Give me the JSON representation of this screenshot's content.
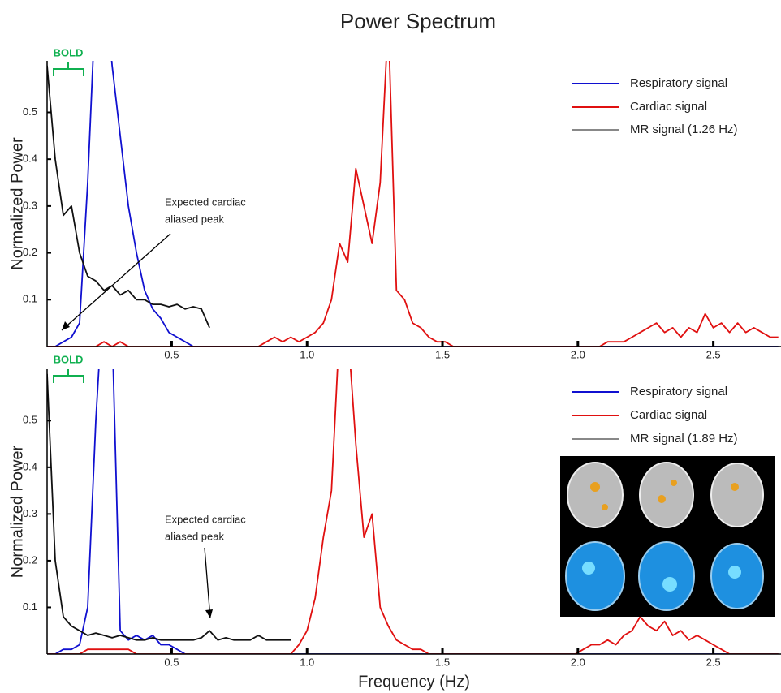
{
  "chart_data": [
    {
      "type": "line",
      "title": "Power Spectrum",
      "ylabel": "Normalized Power",
      "xlim": [
        0.04,
        2.75
      ],
      "ylim": [
        0,
        0.61
      ],
      "xticks": [
        0.5,
        {
          "value": 1,
          "label": "1.0"
        },
        1.5,
        {
          "value": 2,
          "label": "2.0"
        },
        2.5
      ],
      "yticks": [
        0.1,
        0.2,
        0.3,
        0.4,
        0.5
      ],
      "legend": "upper right",
      "annotations": [
        {
          "text": "BOLD"
        },
        {
          "lines": [
            "Expected cardiac",
            "aliased peak"
          ]
        }
      ],
      "x": [
        0.04,
        0.07,
        0.1,
        0.13,
        0.16,
        0.19,
        0.22,
        0.25,
        0.28,
        0.31,
        0.34,
        0.37,
        0.4,
        0.43,
        0.46,
        0.49,
        0.52,
        0.55,
        0.58,
        0.61,
        0.64,
        0.67,
        0.7,
        0.73,
        0.76,
        0.79,
        0.82,
        0.85,
        0.88,
        0.91,
        0.94,
        0.97,
        1,
        1.03,
        1.06,
        1.09,
        1.12,
        1.15,
        1.18,
        1.21,
        1.24,
        1.27,
        1.3,
        1.33,
        1.36,
        1.39,
        1.42,
        1.45,
        1.48,
        1.51,
        1.54,
        1.57,
        1.6,
        1.63,
        1.66,
        1.69,
        1.72,
        1.75,
        1.78,
        1.81,
        1.84,
        1.87,
        1.9,
        1.93,
        1.96,
        1.99,
        2.02,
        2.05,
        2.08,
        2.11,
        2.14,
        2.17,
        2.2,
        2.23,
        2.26,
        2.29,
        2.32,
        2.35,
        2.38,
        2.41,
        2.44,
        2.47,
        2.5,
        2.53,
        2.56,
        2.59,
        2.62,
        2.65,
        2.68,
        2.71,
        2.74
      ],
      "series": [
        {
          "name": "Respiratory signal",
          "color": "#1010d0",
          "values": [
            0,
            0,
            0.01,
            0.02,
            0.05,
            0.35,
            0.75,
            0.8,
            0.6,
            0.45,
            0.3,
            0.2,
            0.12,
            0.08,
            0.06,
            0.03,
            0.02,
            0.01,
            0,
            0,
            0,
            0,
            0,
            0,
            0,
            0,
            0,
            0,
            0,
            0,
            0,
            0,
            0,
            0,
            0,
            0,
            0,
            0,
            0,
            0,
            0,
            0,
            0,
            0,
            0,
            0,
            0,
            0,
            0,
            0,
            0,
            0,
            0,
            0,
            0,
            0,
            0,
            0,
            0,
            0,
            0,
            0,
            0,
            0,
            0,
            0,
            0,
            0,
            0,
            0,
            0,
            0,
            0,
            0,
            0,
            0,
            0,
            0,
            0,
            0,
            0,
            0,
            0,
            0,
            0,
            0,
            0,
            0,
            0,
            0,
            0
          ]
        },
        {
          "name": "Cardiac signal",
          "color": "#e01010",
          "values": [
            0,
            0,
            0,
            0,
            0,
            0,
            0,
            0.01,
            0,
            0.01,
            0,
            0,
            0,
            0,
            0,
            0,
            0,
            0,
            0,
            0,
            0,
            0,
            0,
            0,
            0,
            0,
            0,
            0.01,
            0.02,
            0.01,
            0.02,
            0.01,
            0.02,
            0.03,
            0.05,
            0.1,
            0.22,
            0.18,
            0.38,
            0.3,
            0.22,
            0.35,
            0.7,
            0.12,
            0.1,
            0.05,
            0.04,
            0.02,
            0.01,
            0.01,
            0,
            0,
            0,
            0,
            0,
            0,
            0,
            0,
            0,
            0,
            0,
            0,
            0,
            0,
            0,
            0,
            0,
            0,
            0,
            0.01,
            0.01,
            0.01,
            0.02,
            0.03,
            0.04,
            0.05,
            0.03,
            0.04,
            0.02,
            0.04,
            0.03,
            0.07,
            0.04,
            0.05,
            0.03,
            0.05,
            0.03,
            0.04,
            0.03,
            0.02,
            0.02
          ]
        },
        {
          "name": "MR signal (1.26 Hz)",
          "color": "#111111",
          "values": [
            0.6,
            0.4,
            0.28,
            0.3,
            0.2,
            0.15,
            0.14,
            0.12,
            0.13,
            0.11,
            0.12,
            0.1,
            0.1,
            0.09,
            0.09,
            0.085,
            0.09,
            0.08,
            0.085,
            0.08,
            0.04,
            null,
            null,
            null,
            null,
            null,
            null,
            null,
            null,
            null,
            null,
            null,
            null,
            null,
            null,
            null,
            null,
            null,
            null,
            null,
            null,
            null,
            null,
            null,
            null,
            null,
            null,
            null,
            null,
            null,
            null,
            null,
            null,
            null,
            null,
            null,
            null,
            null,
            null,
            null,
            null,
            null,
            null,
            null,
            null,
            null,
            null,
            null,
            null,
            null,
            null,
            null,
            null,
            null,
            null,
            null,
            null,
            null,
            null,
            null,
            null,
            null,
            null,
            null,
            null,
            null,
            null,
            null,
            null,
            null,
            null
          ]
        }
      ]
    },
    {
      "type": "line",
      "ylabel": "Normalized Power",
      "xlabel": "Frequency (Hz)",
      "xlim": [
        0.04,
        2.75
      ],
      "ylim": [
        0,
        0.61
      ],
      "xticks": [
        0.5,
        {
          "value": 1,
          "label": "1.0"
        },
        1.5,
        {
          "value": 2,
          "label": "2.0"
        },
        2.5
      ],
      "yticks": [
        0.1,
        0.2,
        0.3,
        0.4,
        0.5
      ],
      "legend": "upper right",
      "annotations": [
        {
          "text": "BOLD"
        },
        {
          "lines": [
            "Expected cardiac",
            "aliased peak"
          ]
        }
      ],
      "x": [
        0.04,
        0.07,
        0.1,
        0.13,
        0.16,
        0.19,
        0.22,
        0.25,
        0.28,
        0.31,
        0.34,
        0.37,
        0.4,
        0.43,
        0.46,
        0.49,
        0.52,
        0.55,
        0.58,
        0.61,
        0.64,
        0.67,
        0.7,
        0.73,
        0.76,
        0.79,
        0.82,
        0.85,
        0.88,
        0.91,
        0.94,
        0.97,
        1,
        1.03,
        1.06,
        1.09,
        1.12,
        1.15,
        1.18,
        1.21,
        1.24,
        1.27,
        1.3,
        1.33,
        1.36,
        1.39,
        1.42,
        1.45,
        1.48,
        1.51,
        1.54,
        1.57,
        1.6,
        1.63,
        1.66,
        1.69,
        1.72,
        1.75,
        1.78,
        1.81,
        1.84,
        1.87,
        1.9,
        1.93,
        1.96,
        1.99,
        2.02,
        2.05,
        2.08,
        2.11,
        2.14,
        2.17,
        2.2,
        2.23,
        2.26,
        2.29,
        2.32,
        2.35,
        2.38,
        2.41,
        2.44,
        2.47,
        2.5,
        2.53,
        2.56,
        2.59,
        2.62,
        2.65,
        2.68,
        2.71,
        2.74
      ],
      "series": [
        {
          "name": "Respiratory signal",
          "color": "#1010d0",
          "values": [
            0,
            0,
            0.01,
            0.01,
            0.02,
            0.1,
            0.5,
            0.8,
            0.7,
            0.05,
            0.03,
            0.04,
            0.03,
            0.04,
            0.02,
            0.02,
            0.01,
            0,
            0,
            0,
            0,
            0,
            0,
            0,
            0,
            0,
            0,
            0,
            0,
            0,
            0,
            0,
            0,
            0,
            0,
            0,
            0,
            0,
            0,
            0,
            0,
            0,
            0,
            0,
            0,
            0,
            0,
            0,
            0,
            0,
            0,
            0,
            0,
            0,
            0,
            0,
            0,
            0,
            0,
            0,
            0,
            0,
            0,
            0,
            0,
            0,
            0,
            0,
            0,
            0,
            0,
            0,
            0,
            0,
            0,
            0,
            0,
            0,
            0,
            0,
            0,
            0,
            0,
            0,
            0,
            0,
            0,
            0,
            0,
            0,
            0
          ]
        },
        {
          "name": "Cardiac signal",
          "color": "#e01010",
          "values": [
            0,
            0,
            0,
            0,
            0,
            0.01,
            0.01,
            0.01,
            0.01,
            0.01,
            0.01,
            0,
            0,
            0,
            0,
            0,
            0,
            0,
            0,
            0,
            0,
            0,
            0,
            0,
            0,
            0,
            0,
            0,
            0,
            0,
            0,
            0.02,
            0.05,
            0.12,
            0.25,
            0.35,
            0.7,
            0.7,
            0.45,
            0.25,
            0.3,
            0.1,
            0.06,
            0.03,
            0.02,
            0.01,
            0.01,
            0,
            0,
            0,
            0,
            0,
            0,
            0,
            0,
            0,
            0,
            0,
            0,
            0,
            0,
            0,
            0,
            0,
            0,
            0,
            0.01,
            0.02,
            0.02,
            0.03,
            0.02,
            0.04,
            0.05,
            0.08,
            0.06,
            0.05,
            0.07,
            0.04,
            0.05,
            0.03,
            0.04,
            0.03,
            0.02,
            0.01,
            0,
            0,
            0,
            0,
            0,
            0,
            0
          ]
        },
        {
          "name": "MR signal (1.89 Hz)",
          "color": "#111111",
          "values": [
            0.6,
            0.2,
            0.08,
            0.06,
            0.05,
            0.04,
            0.045,
            0.04,
            0.035,
            0.04,
            0.035,
            0.03,
            0.03,
            0.035,
            0.03,
            0.03,
            0.03,
            0.03,
            0.03,
            0.035,
            0.05,
            0.03,
            0.035,
            0.03,
            0.03,
            0.03,
            0.04,
            0.03,
            0.03,
            0.03,
            0.03,
            null,
            null,
            null,
            null,
            null,
            null,
            null,
            null,
            null,
            null,
            null,
            null,
            null,
            null,
            null,
            null,
            null,
            null,
            null,
            null,
            null,
            null,
            null,
            null,
            null,
            null,
            null,
            null,
            null,
            null,
            null,
            null,
            null,
            null,
            null,
            null,
            null,
            null,
            null,
            null,
            null,
            null,
            null,
            null,
            null,
            null,
            null,
            null,
            null,
            null,
            null,
            null,
            null,
            null,
            null,
            null,
            null,
            null,
            null,
            null
          ]
        }
      ]
    }
  ]
}
